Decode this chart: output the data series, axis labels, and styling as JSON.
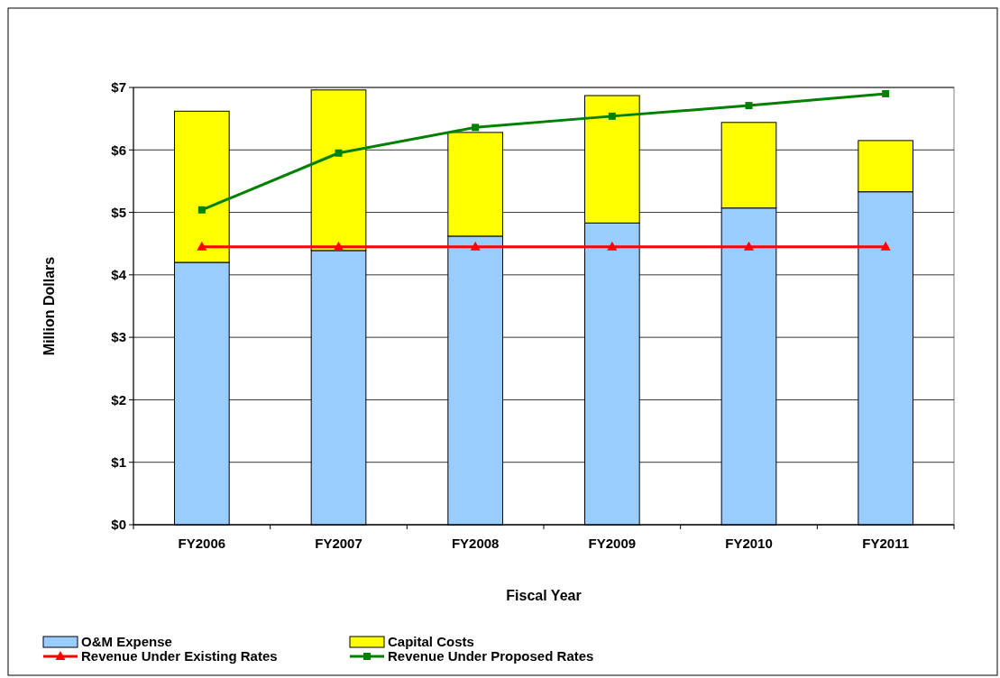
{
  "chart_data": {
    "type": "bar",
    "stacked": true,
    "xlabel": "Fiscal Year",
    "ylabel": "Million Dollars",
    "categories": [
      "FY2006",
      "FY2007",
      "FY2008",
      "FY2009",
      "FY2010",
      "FY2011"
    ],
    "series": [
      {
        "name": "O&M Expense",
        "color": "#99ccff",
        "values": [
          4.2,
          4.39,
          4.62,
          4.83,
          5.07,
          5.33
        ]
      },
      {
        "name": "Capital Costs",
        "color": "#ffff00",
        "values": [
          2.42,
          2.57,
          1.66,
          2.04,
          1.37,
          0.82
        ]
      },
      {
        "name": "Revenue Under Existing Rates",
        "type": "line",
        "color": "#ff0000",
        "marker": "triangle",
        "values": [
          4.45,
          4.45,
          4.45,
          4.45,
          4.45,
          4.45
        ]
      },
      {
        "name": "Revenue Under Proposed Rates",
        "type": "line",
        "color": "#008000",
        "marker": "square",
        "values": [
          5.04,
          5.95,
          6.36,
          6.54,
          6.71,
          6.9
        ]
      }
    ],
    "ylim": [
      0,
      7
    ],
    "yticks": [
      {
        "value": 0,
        "label": "$0"
      },
      {
        "value": 1,
        "label": "$1"
      },
      {
        "value": 2,
        "label": "$2"
      },
      {
        "value": 3,
        "label": "$3"
      },
      {
        "value": 4,
        "label": "$4"
      },
      {
        "value": 5,
        "label": "$5"
      },
      {
        "value": 6,
        "label": "$6"
      },
      {
        "value": 7,
        "label": "$7"
      }
    ],
    "grid": "y",
    "legend": "bottom"
  }
}
